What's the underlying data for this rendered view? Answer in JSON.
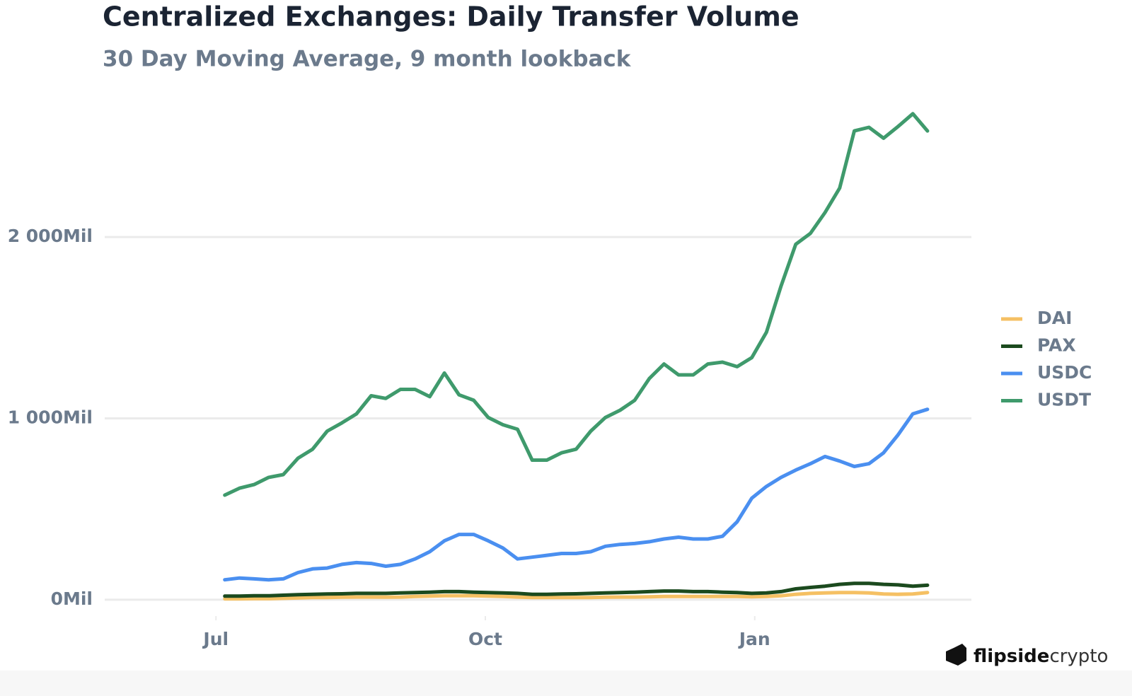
{
  "chart_data": {
    "type": "line",
    "title": "Centralized Exchanges: Daily Transfer Volume",
    "subtitle": "30 Day Moving Average, 9 month lookback",
    "x": [
      3,
      8,
      13,
      18,
      23,
      28,
      33,
      38,
      43,
      48,
      53,
      58,
      63,
      68,
      73,
      78,
      83,
      88,
      93,
      98,
      103,
      108,
      113,
      118,
      123,
      128,
      133,
      138,
      143,
      148,
      153,
      158,
      163,
      168,
      173,
      178,
      183,
      188,
      193,
      198,
      203,
      208,
      213,
      218,
      223,
      228,
      233,
      238,
      243
    ],
    "xlim": [
      -38,
      258
    ],
    "xticks": [
      {
        "value": 0,
        "label": "Jul"
      },
      {
        "value": 92,
        "label": "Oct"
      },
      {
        "value": 184,
        "label": "Jan"
      }
    ],
    "ylim": [
      -90,
      2800
    ],
    "yticks": [
      {
        "value": 0,
        "label": "0Mil"
      },
      {
        "value": 1000,
        "label": "1 000Mil"
      },
      {
        "value": 2000,
        "label": "2 000Mil"
      }
    ],
    "grid": true,
    "legend": "right",
    "series": [
      {
        "name": "DAI",
        "color": "#f5c063",
        "values": [
          5,
          5,
          6,
          6,
          8,
          10,
          12,
          12,
          14,
          15,
          15,
          14,
          15,
          18,
          20,
          22,
          22,
          22,
          20,
          18,
          15,
          12,
          12,
          12,
          12,
          12,
          14,
          15,
          15,
          16,
          18,
          18,
          18,
          18,
          18,
          18,
          16,
          18,
          22,
          30,
          35,
          38,
          40,
          40,
          38,
          32,
          30,
          32,
          40
        ]
      },
      {
        "name": "PAX",
        "color": "#1b4a1e",
        "values": [
          20,
          20,
          22,
          22,
          25,
          28,
          30,
          32,
          33,
          35,
          35,
          35,
          38,
          40,
          42,
          45,
          45,
          42,
          40,
          38,
          35,
          30,
          30,
          32,
          33,
          35,
          38,
          40,
          42,
          45,
          48,
          48,
          45,
          45,
          42,
          40,
          35,
          38,
          45,
          60,
          68,
          75,
          85,
          90,
          90,
          85,
          82,
          75,
          80
        ]
      },
      {
        "name": "USDC",
        "color": "#4a8ff0",
        "values": [
          110,
          120,
          115,
          110,
          115,
          150,
          170,
          175,
          195,
          205,
          200,
          185,
          195,
          225,
          265,
          325,
          360,
          360,
          325,
          285,
          225,
          235,
          245,
          255,
          255,
          265,
          295,
          305,
          310,
          320,
          335,
          345,
          335,
          335,
          350,
          430,
          560,
          625,
          675,
          715,
          750,
          790,
          765,
          735,
          750,
          810,
          910,
          1025,
          1050
        ]
      },
      {
        "name": "USDT",
        "color": "#3f9a6c",
        "values": [
          577,
          615,
          635,
          675,
          690,
          780,
          830,
          930,
          975,
          1025,
          1125,
          1110,
          1160,
          1160,
          1120,
          1250,
          1130,
          1100,
          1005,
          965,
          940,
          770,
          770,
          810,
          830,
          930,
          1005,
          1045,
          1100,
          1220,
          1300,
          1240,
          1240,
          1300,
          1310,
          1285,
          1335,
          1475,
          1730,
          1960,
          2020,
          2135,
          2270,
          2585,
          2605,
          2545,
          2610,
          2680,
          2585
        ]
      }
    ]
  },
  "watermark": {
    "bold": "flipside",
    "light": "crypto"
  }
}
